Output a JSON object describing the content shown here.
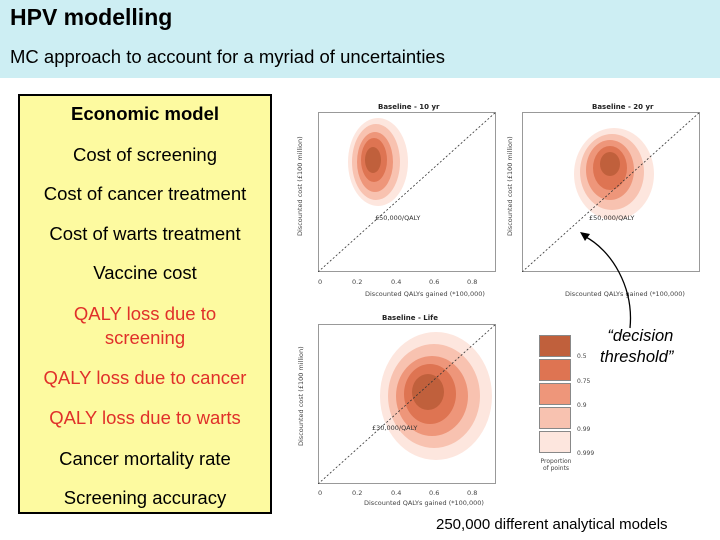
{
  "slide": {
    "title": "HPV modelling",
    "subtitle": "MC approach to account for a myriad of uncertainties"
  },
  "panel": {
    "heading": "Economic model",
    "items": [
      {
        "text": "Cost of screening",
        "color": "#000000"
      },
      {
        "text": "Cost of cancer treatment",
        "color": "#000000"
      },
      {
        "text": "Cost of warts treatment",
        "color": "#000000"
      },
      {
        "text": "Vaccine cost",
        "color": "#000000"
      },
      {
        "text": "QALY loss due to screening",
        "color": "#e0302a"
      },
      {
        "text": "QALY loss due to cancer",
        "color": "#e0302a"
      },
      {
        "text": "QALY loss due to warts",
        "color": "#e0302a"
      },
      {
        "text": "Cancer mortality rate",
        "color": "#000000"
      },
      {
        "text": "Screening accuracy",
        "color": "#000000"
      }
    ],
    "background": "#fdfaa0"
  },
  "plots": {
    "baseline_10": {
      "title": "Baseline - 10 yr",
      "threshold_label": "£50,000/QALY",
      "xlabel": "Discounted QALYs gained (*100,000)",
      "ylabel": "Discounted cost (£100 million)",
      "x_ticks": [
        "0",
        "0.2",
        "0.4",
        "0.6",
        "0.8"
      ]
    },
    "baseline_20": {
      "title": "Baseline - 20 yr",
      "threshold_label": "£50,000/QALY",
      "xlabel": "Discounted QALYs gained (*100,000)",
      "ylabel": "Discounted cost (£100 million)"
    },
    "baseline_life": {
      "title": "Baseline - Life",
      "threshold_label": "£30,000/QALY",
      "xlabel": "Discounted QALYs gained (*100,000)",
      "ylabel": "Discounted cost (£100 million)",
      "x_ticks": [
        "0",
        "0.2",
        "0.4",
        "0.6",
        "0.8"
      ]
    }
  },
  "legend": {
    "title": "Proportion of points",
    "levels": [
      {
        "label": "0.5",
        "color": "#c0603c"
      },
      {
        "label": "0.75",
        "color": "#de7452"
      },
      {
        "label": "0.9",
        "color": "#ee967a"
      },
      {
        "label": "0.99",
        "color": "#f8c2b0"
      },
      {
        "label": "0.999",
        "color": "#fde6de"
      }
    ]
  },
  "callout": {
    "line1": "“decision",
    "line2": "threshold”"
  },
  "footnote": "250,000 different analytical models",
  "colors": {
    "header_bg": "#cdeef3",
    "accent_red": "#e0302a"
  }
}
